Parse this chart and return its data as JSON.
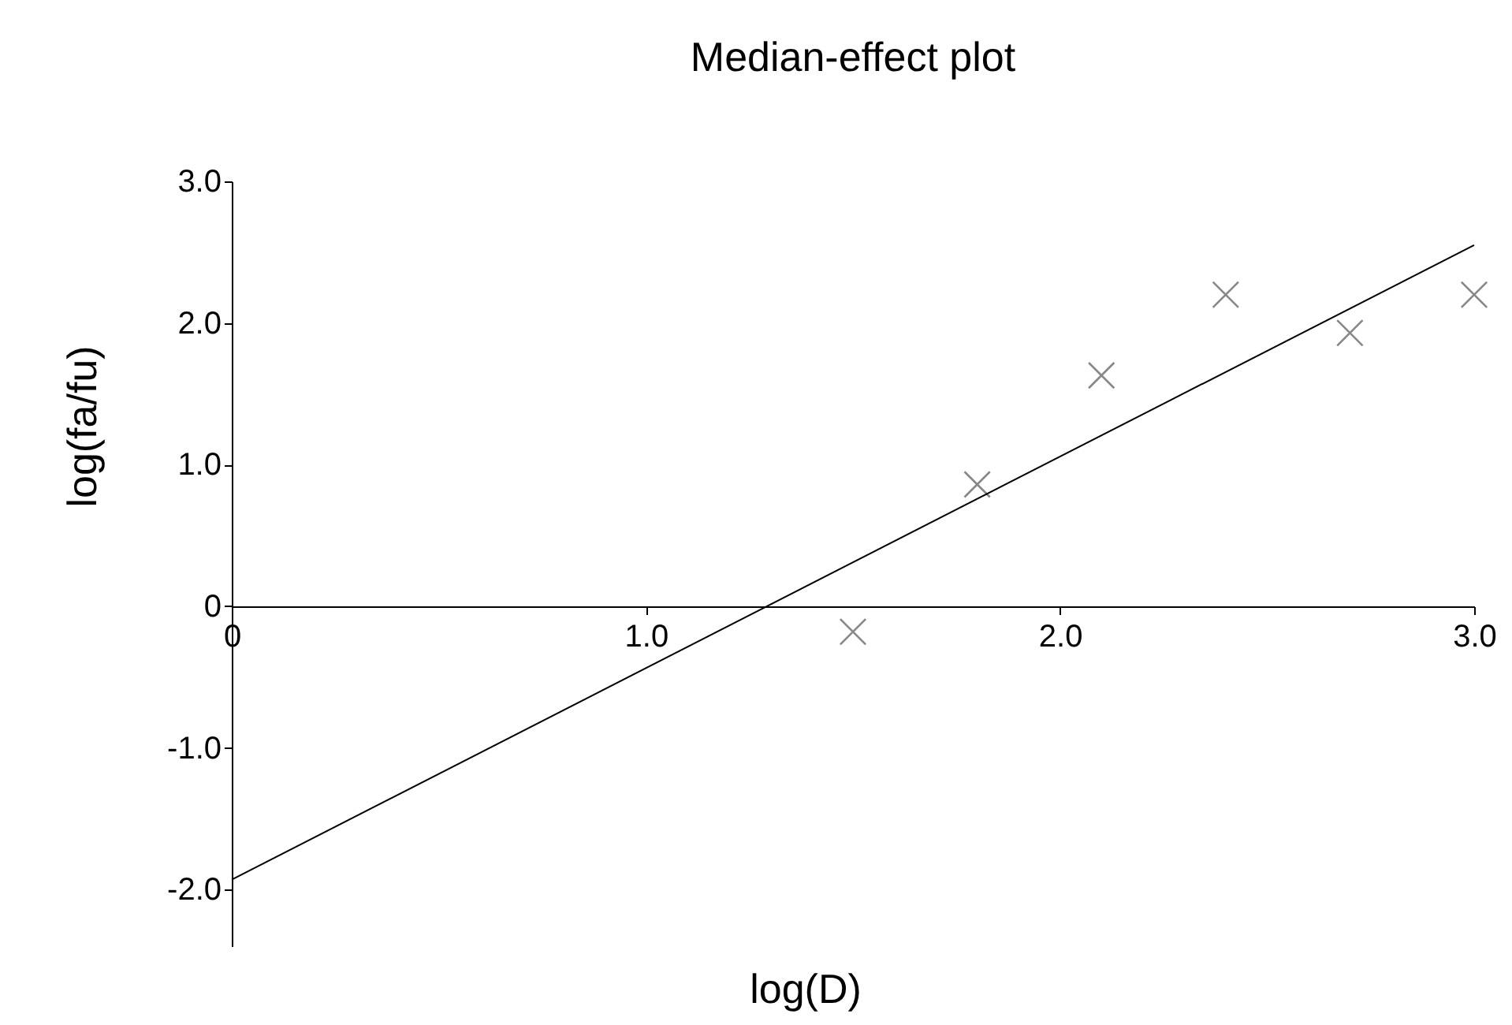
{
  "chart_data": {
    "type": "scatter",
    "title": "Median-effect plot",
    "xlabel": "log(D)",
    "ylabel": "log(fa/fu)",
    "series": [
      {
        "type": "scatter",
        "color": "#555555",
        "marker": "cross",
        "x": [
          1.5,
          1.8,
          2.1,
          2.4,
          2.7,
          3.0
        ],
        "values": [
          -0.18,
          0.86,
          1.63,
          2.2,
          1.93,
          2.2
        ]
      },
      {
        "type": "line",
        "color": "#000000",
        "line_style": "solid",
        "x": [
          0,
          3.0
        ],
        "values": [
          -1.93,
          2.55
        ]
      }
    ],
    "xlim": [
      0,
      3.0
    ],
    "ylim": [
      -2.4,
      3.0
    ],
    "xticks": [
      0,
      {
        "value": 1,
        "label": "1.0"
      },
      {
        "value": 2,
        "label": "2.0"
      },
      {
        "value": 3,
        "label": "3.0"
      }
    ],
    "yticks": [
      {
        "value": -2,
        "label": "-2.0"
      },
      {
        "value": -1,
        "label": "-1.0"
      },
      0,
      {
        "value": 1,
        "label": "1.0"
      },
      {
        "value": 2,
        "label": "2.0"
      },
      {
        "value": 3,
        "label": "3.0"
      }
    ],
    "grid": false
  }
}
